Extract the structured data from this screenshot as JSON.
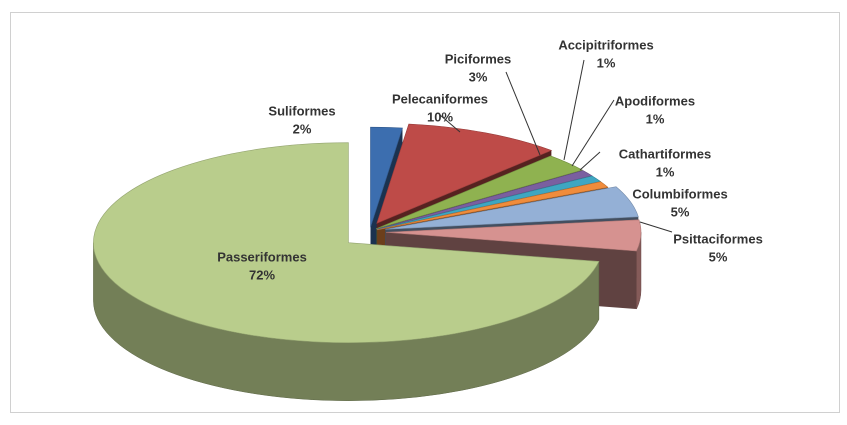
{
  "chart_data": {
    "type": "pie",
    "labels": [
      "Suliformes",
      "Pelecaniformes",
      "Piciformes",
      "Accipitriformes",
      "Apodiformes",
      "Cathartiformes",
      "Columbiformes",
      "Psittaciformes",
      "Passeriformes"
    ],
    "values": [
      2,
      10,
      3,
      1,
      1,
      1,
      5,
      5,
      72
    ],
    "value_labels": [
      "2%",
      "10%",
      "3%",
      "1%",
      "1%",
      "1%",
      "5%",
      "5%",
      "72%"
    ],
    "colors": [
      "#3c6eaf",
      "#be4b48",
      "#8fb250",
      "#7a5fa0",
      "#3fa6c2",
      "#f08c3c",
      "#94b0d6",
      "#d69290",
      "#b9cd8c"
    ]
  }
}
